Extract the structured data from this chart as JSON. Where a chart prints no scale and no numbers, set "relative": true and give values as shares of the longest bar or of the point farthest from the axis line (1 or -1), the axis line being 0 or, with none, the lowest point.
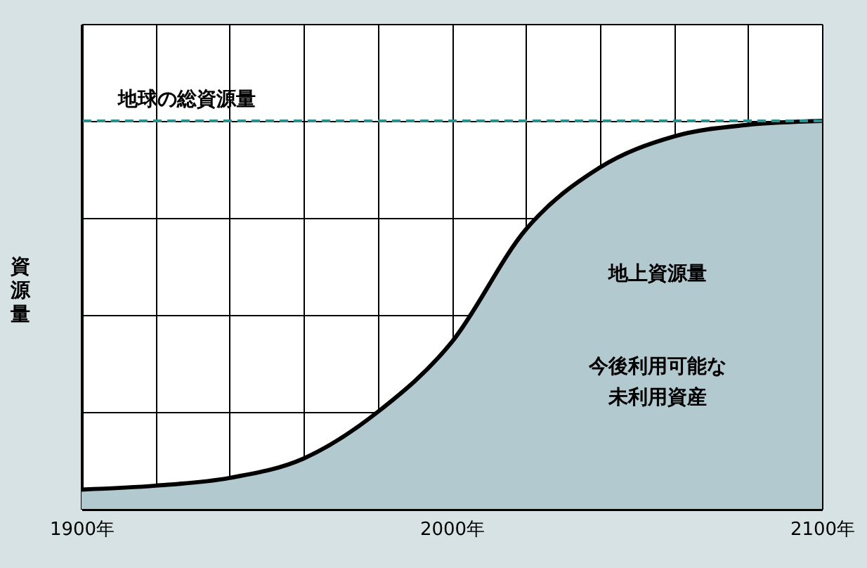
{
  "chart_data": {
    "type": "area",
    "relative": true,
    "ylabel": "資源量",
    "x": [
      1900,
      1920,
      1940,
      1960,
      1980,
      2000,
      2020,
      2040,
      2060,
      2080,
      2100
    ],
    "series": [
      {
        "color": "#b3c9d0",
        "values": [
          0.05,
          0.06,
          0.08,
          0.13,
          0.25,
          0.43,
          0.72,
          0.88,
          0.96,
          0.99,
          1
        ]
      }
    ],
    "xlim": [
      1900,
      2100
    ],
    "xticks": [
      {
        "value": 1900,
        "label": "1900年"
      },
      {
        "value": 1920,
        "label": null
      },
      {
        "value": 1940,
        "label": null
      },
      {
        "value": 1960,
        "label": null
      },
      {
        "value": 1980,
        "label": null
      },
      {
        "value": 2000,
        "label": "2000年"
      },
      {
        "value": 2020,
        "label": null
      },
      {
        "value": 2040,
        "label": null
      },
      {
        "value": 2060,
        "label": null
      },
      {
        "value": 2080,
        "label": null
      },
      {
        "value": 2100,
        "label": "2100年"
      }
    ],
    "ref_lines": [
      {
        "axis": "y",
        "value": 1,
        "label": "地球の総資源量",
        "color": "#2a8f8f",
        "line_style": "dashed"
      }
    ],
    "annotations": [
      "地上資源量",
      "今後利用可能な",
      "未利用資産"
    ],
    "grid": true
  }
}
